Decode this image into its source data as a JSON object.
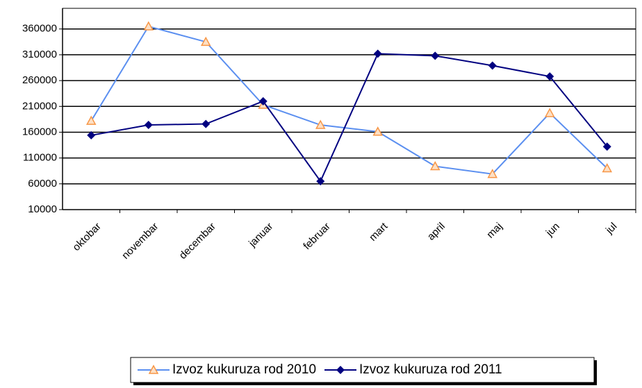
{
  "chart_data": {
    "type": "line",
    "categories": [
      "oktobar",
      "novembar",
      "decembar",
      "januar",
      "februar",
      "mart",
      "april",
      "maj",
      "jun",
      "jul"
    ],
    "series": [
      {
        "name": "Izvoz kukuruza rod 2010",
        "color": "#5b8ff0",
        "marker": "triangle",
        "marker_color": "#f79646",
        "values": [
          182000,
          365000,
          335000,
          213000,
          174000,
          161000,
          94000,
          79000,
          197000,
          90000
        ]
      },
      {
        "name": "Izvoz kukuruza rod 2011",
        "color": "#000080",
        "marker": "diamond",
        "marker_color": "#000080",
        "values": [
          154000,
          174000,
          176000,
          220000,
          65000,
          312000,
          308000,
          289000,
          268000,
          132000
        ]
      }
    ],
    "ylim": [
      10000,
      400000
    ],
    "yticks": [
      10000,
      60000,
      110000,
      160000,
      210000,
      260000,
      310000,
      360000
    ],
    "grid": true,
    "legend": "bottom"
  }
}
